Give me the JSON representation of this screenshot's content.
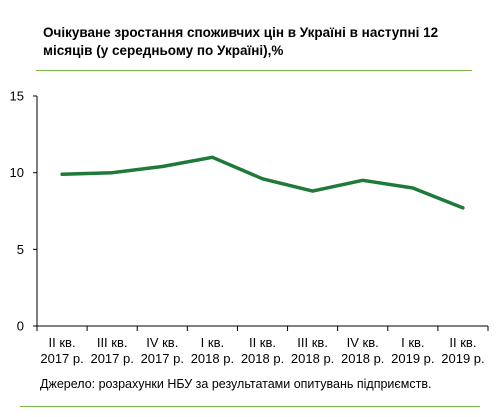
{
  "chart_data": {
    "type": "line",
    "title": "Очікуване зростання споживчих цін в Україні в наступні 12 місяців (у середньому по Україні),%",
    "categories": [
      [
        "II кв.",
        "2017 р."
      ],
      [
        "III кв.",
        "2017 р."
      ],
      [
        "IV кв.",
        "2017 р."
      ],
      [
        "I кв.",
        "2018 р."
      ],
      [
        "II кв.",
        "2018 р."
      ],
      [
        "III кв.",
        "2018 р."
      ],
      [
        "IV кв.",
        "2018 р."
      ],
      [
        "I кв.",
        "2019 р."
      ],
      [
        "II кв.",
        "2019 р."
      ]
    ],
    "series": [
      {
        "values": [
          9.9,
          10.0,
          10.4,
          11.0,
          9.6,
          8.8,
          9.5,
          9.0,
          7.7
        ]
      }
    ],
    "ylim": [
      0,
      15
    ],
    "yticks": [
      0,
      5,
      10,
      15
    ],
    "grid": false,
    "legend": "none",
    "xlabel": "",
    "ylabel": "",
    "line_color": "#1f7a3a",
    "rule_color": "#7ab648"
  },
  "source": "Джерело:  розрахунки   НБУ за результатами опитувань підприємств."
}
